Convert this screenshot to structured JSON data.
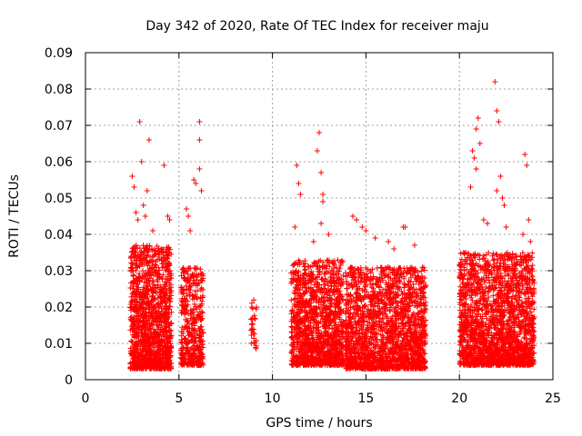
{
  "chart_data": {
    "type": "scatter",
    "title": "Day 342 of 2020, Rate Of TEC Index for receiver maju",
    "xlabel": "GPS time / hours",
    "ylabel": "ROTI / TECUs",
    "xlim": [
      0,
      25
    ],
    "ylim": [
      0,
      0.09
    ],
    "xticks": [
      0,
      5,
      10,
      15,
      20,
      25
    ],
    "xtick_labels": [
      "0",
      "5",
      "10",
      "15",
      "20",
      "25"
    ],
    "yticks": [
      0,
      0.01,
      0.02,
      0.03,
      0.04,
      0.05,
      0.06,
      0.07,
      0.08,
      0.09
    ],
    "ytick_labels": [
      "0",
      "0.01",
      "0.02",
      "0.03",
      "0.04",
      "0.05",
      "0.06",
      "0.07",
      "0.08",
      "0.09"
    ],
    "grid": true,
    "marker": "plus",
    "marker_color": "#ff0000",
    "series": [
      {
        "name": "ROTI",
        "clusters": [
          {
            "x_range": [
              2.4,
              4.6
            ],
            "y_min": 0.003,
            "y_max": 0.037,
            "n": 1300,
            "seed": 11
          },
          {
            "x_range": [
              5.1,
              6.3
            ],
            "y_min": 0.004,
            "y_max": 0.031,
            "n": 420,
            "seed": 23
          },
          {
            "x_range": [
              8.85,
              9.15
            ],
            "y_min": 0.008,
            "y_max": 0.022,
            "n": 30,
            "seed": 37
          },
          {
            "x_range": [
              11.0,
              13.8
            ],
            "y_min": 0.004,
            "y_max": 0.033,
            "n": 1300,
            "seed": 41
          },
          {
            "x_range": [
              13.9,
              18.2
            ],
            "y_min": 0.003,
            "y_max": 0.031,
            "n": 1800,
            "seed": 53
          },
          {
            "x_range": [
              20.0,
              24.0
            ],
            "y_min": 0.004,
            "y_max": 0.035,
            "n": 1900,
            "seed": 67
          }
        ],
        "outliers": [
          [
            2.5,
            0.056
          ],
          [
            2.6,
            0.053
          ],
          [
            2.7,
            0.046
          ],
          [
            2.8,
            0.044
          ],
          [
            2.9,
            0.071
          ],
          [
            3.0,
            0.06
          ],
          [
            3.1,
            0.048
          ],
          [
            3.2,
            0.045
          ],
          [
            3.3,
            0.052
          ],
          [
            3.4,
            0.066
          ],
          [
            3.6,
            0.041
          ],
          [
            4.2,
            0.059
          ],
          [
            4.4,
            0.045
          ],
          [
            4.5,
            0.044
          ],
          [
            5.4,
            0.047
          ],
          [
            5.5,
            0.045
          ],
          [
            5.6,
            0.041
          ],
          [
            5.8,
            0.055
          ],
          [
            5.9,
            0.054
          ],
          [
            6.1,
            0.071
          ],
          [
            6.1,
            0.066
          ],
          [
            6.1,
            0.058
          ],
          [
            6.2,
            0.052
          ],
          [
            11.3,
            0.059
          ],
          [
            11.4,
            0.054
          ],
          [
            11.5,
            0.051
          ],
          [
            11.2,
            0.042
          ],
          [
            12.4,
            0.063
          ],
          [
            12.5,
            0.068
          ],
          [
            12.6,
            0.057
          ],
          [
            12.7,
            0.051
          ],
          [
            12.6,
            0.043
          ],
          [
            12.7,
            0.049
          ],
          [
            13.0,
            0.04
          ],
          [
            12.2,
            0.038
          ],
          [
            14.3,
            0.045
          ],
          [
            14.5,
            0.044
          ],
          [
            14.8,
            0.042
          ],
          [
            15.0,
            0.041
          ],
          [
            15.5,
            0.039
          ],
          [
            16.2,
            0.038
          ],
          [
            17.0,
            0.042
          ],
          [
            17.1,
            0.042
          ],
          [
            17.6,
            0.037
          ],
          [
            16.5,
            0.036
          ],
          [
            20.8,
            0.061
          ],
          [
            20.9,
            0.069
          ],
          [
            20.7,
            0.063
          ],
          [
            20.9,
            0.058
          ],
          [
            20.6,
            0.053
          ],
          [
            21.1,
            0.065
          ],
          [
            21.0,
            0.072
          ],
          [
            21.9,
            0.082
          ],
          [
            22.0,
            0.074
          ],
          [
            22.1,
            0.071
          ],
          [
            22.2,
            0.056
          ],
          [
            22.0,
            0.052
          ],
          [
            22.3,
            0.05
          ],
          [
            22.4,
            0.048
          ],
          [
            21.5,
            0.043
          ],
          [
            21.3,
            0.044
          ],
          [
            22.5,
            0.042
          ],
          [
            23.5,
            0.062
          ],
          [
            23.6,
            0.059
          ],
          [
            23.7,
            0.044
          ],
          [
            23.4,
            0.04
          ],
          [
            23.8,
            0.038
          ]
        ]
      }
    ]
  }
}
